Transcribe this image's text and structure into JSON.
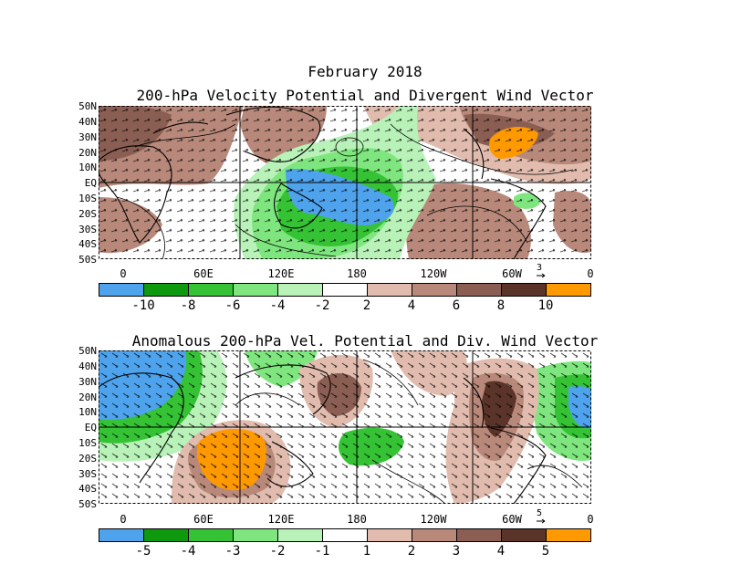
{
  "title_main": "February 2018",
  "panel1": {
    "title": "200-hPa Velocity Potential and Divergent Wind Vector",
    "lat_labels": [
      "50N",
      "40N",
      "30N",
      "20N",
      "10N",
      "EQ",
      "10S",
      "20S",
      "30S",
      "40S",
      "50S"
    ],
    "lon_labels": [
      "0",
      "60E",
      "120E",
      "180",
      "120W",
      "60W",
      "0"
    ],
    "vector_ref_value": "3",
    "colorbar_labels": [
      "-10",
      "-8",
      "-6",
      "-4",
      "-2",
      "2",
      "4",
      "6",
      "8",
      "10"
    ],
    "colorbar_colors": [
      "#4ea3ec",
      "#0f990f",
      "#35c335",
      "#7fe67f",
      "#b8f2b8",
      "#ffffff",
      "#e1bcae",
      "#b8897a",
      "#8a5e52",
      "#5b3429",
      "#ff9900"
    ]
  },
  "panel2": {
    "title": "Anomalous 200-hPa Vel. Potential and Div. Wind Vector",
    "lat_labels": [
      "50N",
      "40N",
      "30N",
      "20N",
      "10N",
      "EQ",
      "10S",
      "20S",
      "30S",
      "40S",
      "50S"
    ],
    "lon_labels": [
      "0",
      "60E",
      "120E",
      "180",
      "120W",
      "60W",
      "0"
    ],
    "vector_ref_value": "5",
    "colorbar_labels": [
      "-5",
      "-4",
      "-3",
      "-2",
      "-1",
      "1",
      "2",
      "3",
      "4",
      "5"
    ],
    "colorbar_colors": [
      "#4ea3ec",
      "#0f990f",
      "#35c335",
      "#7fe67f",
      "#b8f2b8",
      "#ffffff",
      "#e1bcae",
      "#b8897a",
      "#8a5e52",
      "#5b3429",
      "#ff9900"
    ]
  }
}
